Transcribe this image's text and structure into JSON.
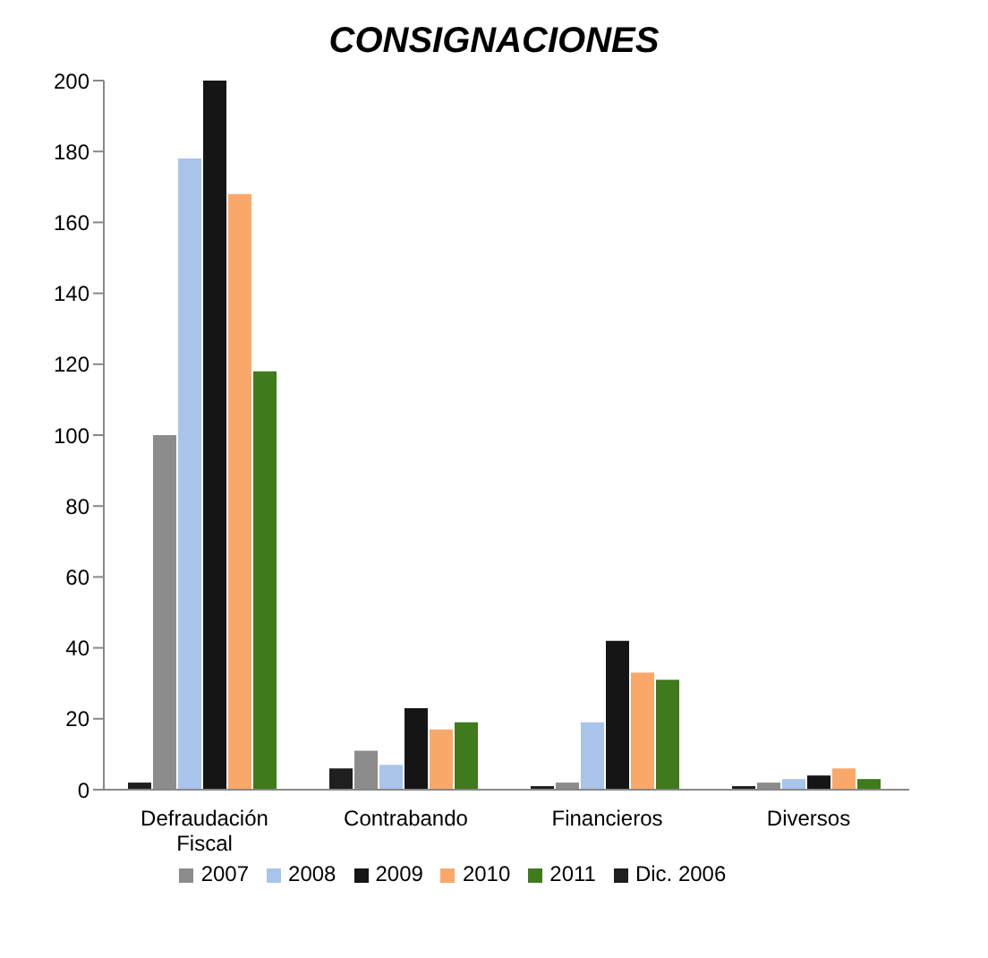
{
  "chart_data": {
    "type": "bar",
    "title": "CONSIGNACIONES",
    "categories": [
      "Defraudación Fiscal",
      "Contrabando",
      "Financieros",
      "Diversos"
    ],
    "series": [
      {
        "name": "Dic. 2006",
        "color": "#1f1f1f",
        "values": [
          2,
          6,
          1,
          1
        ]
      },
      {
        "name": "2007",
        "color": "#8c8c8c",
        "values": [
          100,
          11,
          2,
          2
        ]
      },
      {
        "name": "2008",
        "color": "#a9c4ea",
        "values": [
          178,
          7,
          19,
          3
        ]
      },
      {
        "name": "2009",
        "color": "#151515",
        "values": [
          200,
          23,
          42,
          4
        ]
      },
      {
        "name": "2010",
        "color": "#f9a86a",
        "values": [
          168,
          17,
          33,
          6
        ]
      },
      {
        "name": "2011",
        "color": "#3f7a1c",
        "values": [
          118,
          19,
          31,
          3
        ]
      }
    ],
    "ylim": [
      0,
      200
    ],
    "yticks": [
      0,
      20,
      40,
      60,
      80,
      100,
      120,
      140,
      160,
      180,
      200
    ],
    "grid": false,
    "legend": "bottom"
  }
}
